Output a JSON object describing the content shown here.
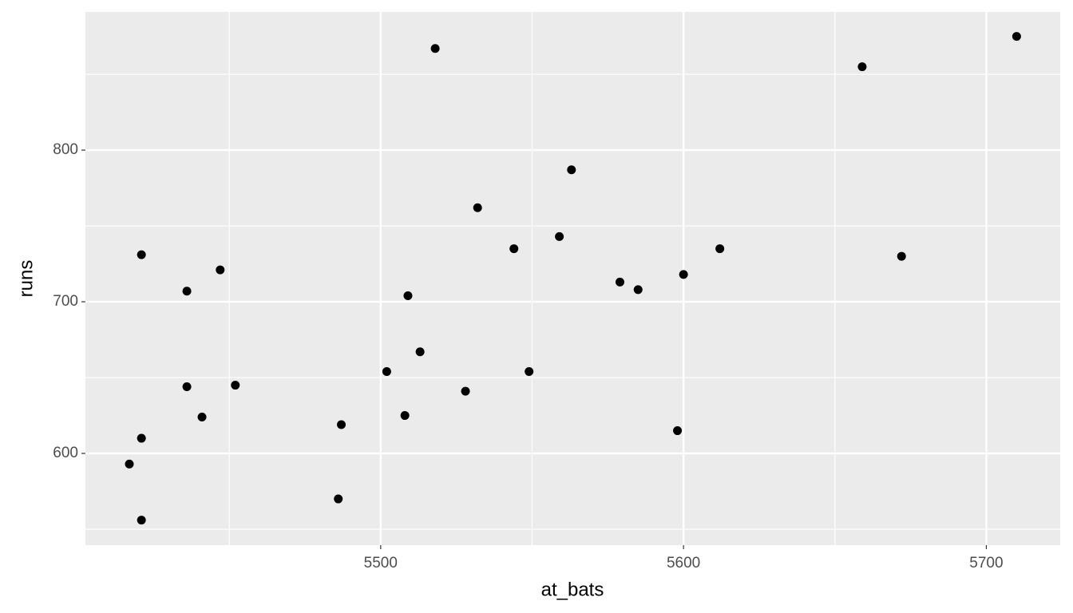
{
  "chart_data": {
    "type": "scatter",
    "x_label": "at_bats",
    "y_label": "runs",
    "x": [
      5417,
      5421,
      5421,
      5421,
      5436,
      5436,
      5441,
      5447,
      5452,
      5486,
      5487,
      5502,
      5508,
      5509,
      5513,
      5518,
      5528,
      5532,
      5544,
      5549,
      5559,
      5563,
      5579,
      5585,
      5598,
      5600,
      5612,
      5659,
      5672,
      5710
    ],
    "y": [
      593,
      556,
      610,
      731,
      707,
      644,
      624,
      721,
      645,
      570,
      619,
      654,
      625,
      704,
      667,
      867,
      641,
      762,
      735,
      654,
      743,
      787,
      713,
      708,
      615,
      718,
      735,
      855,
      730,
      875
    ],
    "color": "#000000",
    "xlim": [
      5402.5,
      5724.4
    ],
    "ylim": [
      539.5,
      891.1
    ],
    "xticks": [
      5500,
      5600,
      5700
    ],
    "yticks": [
      600,
      700,
      800
    ],
    "grid": true
  }
}
